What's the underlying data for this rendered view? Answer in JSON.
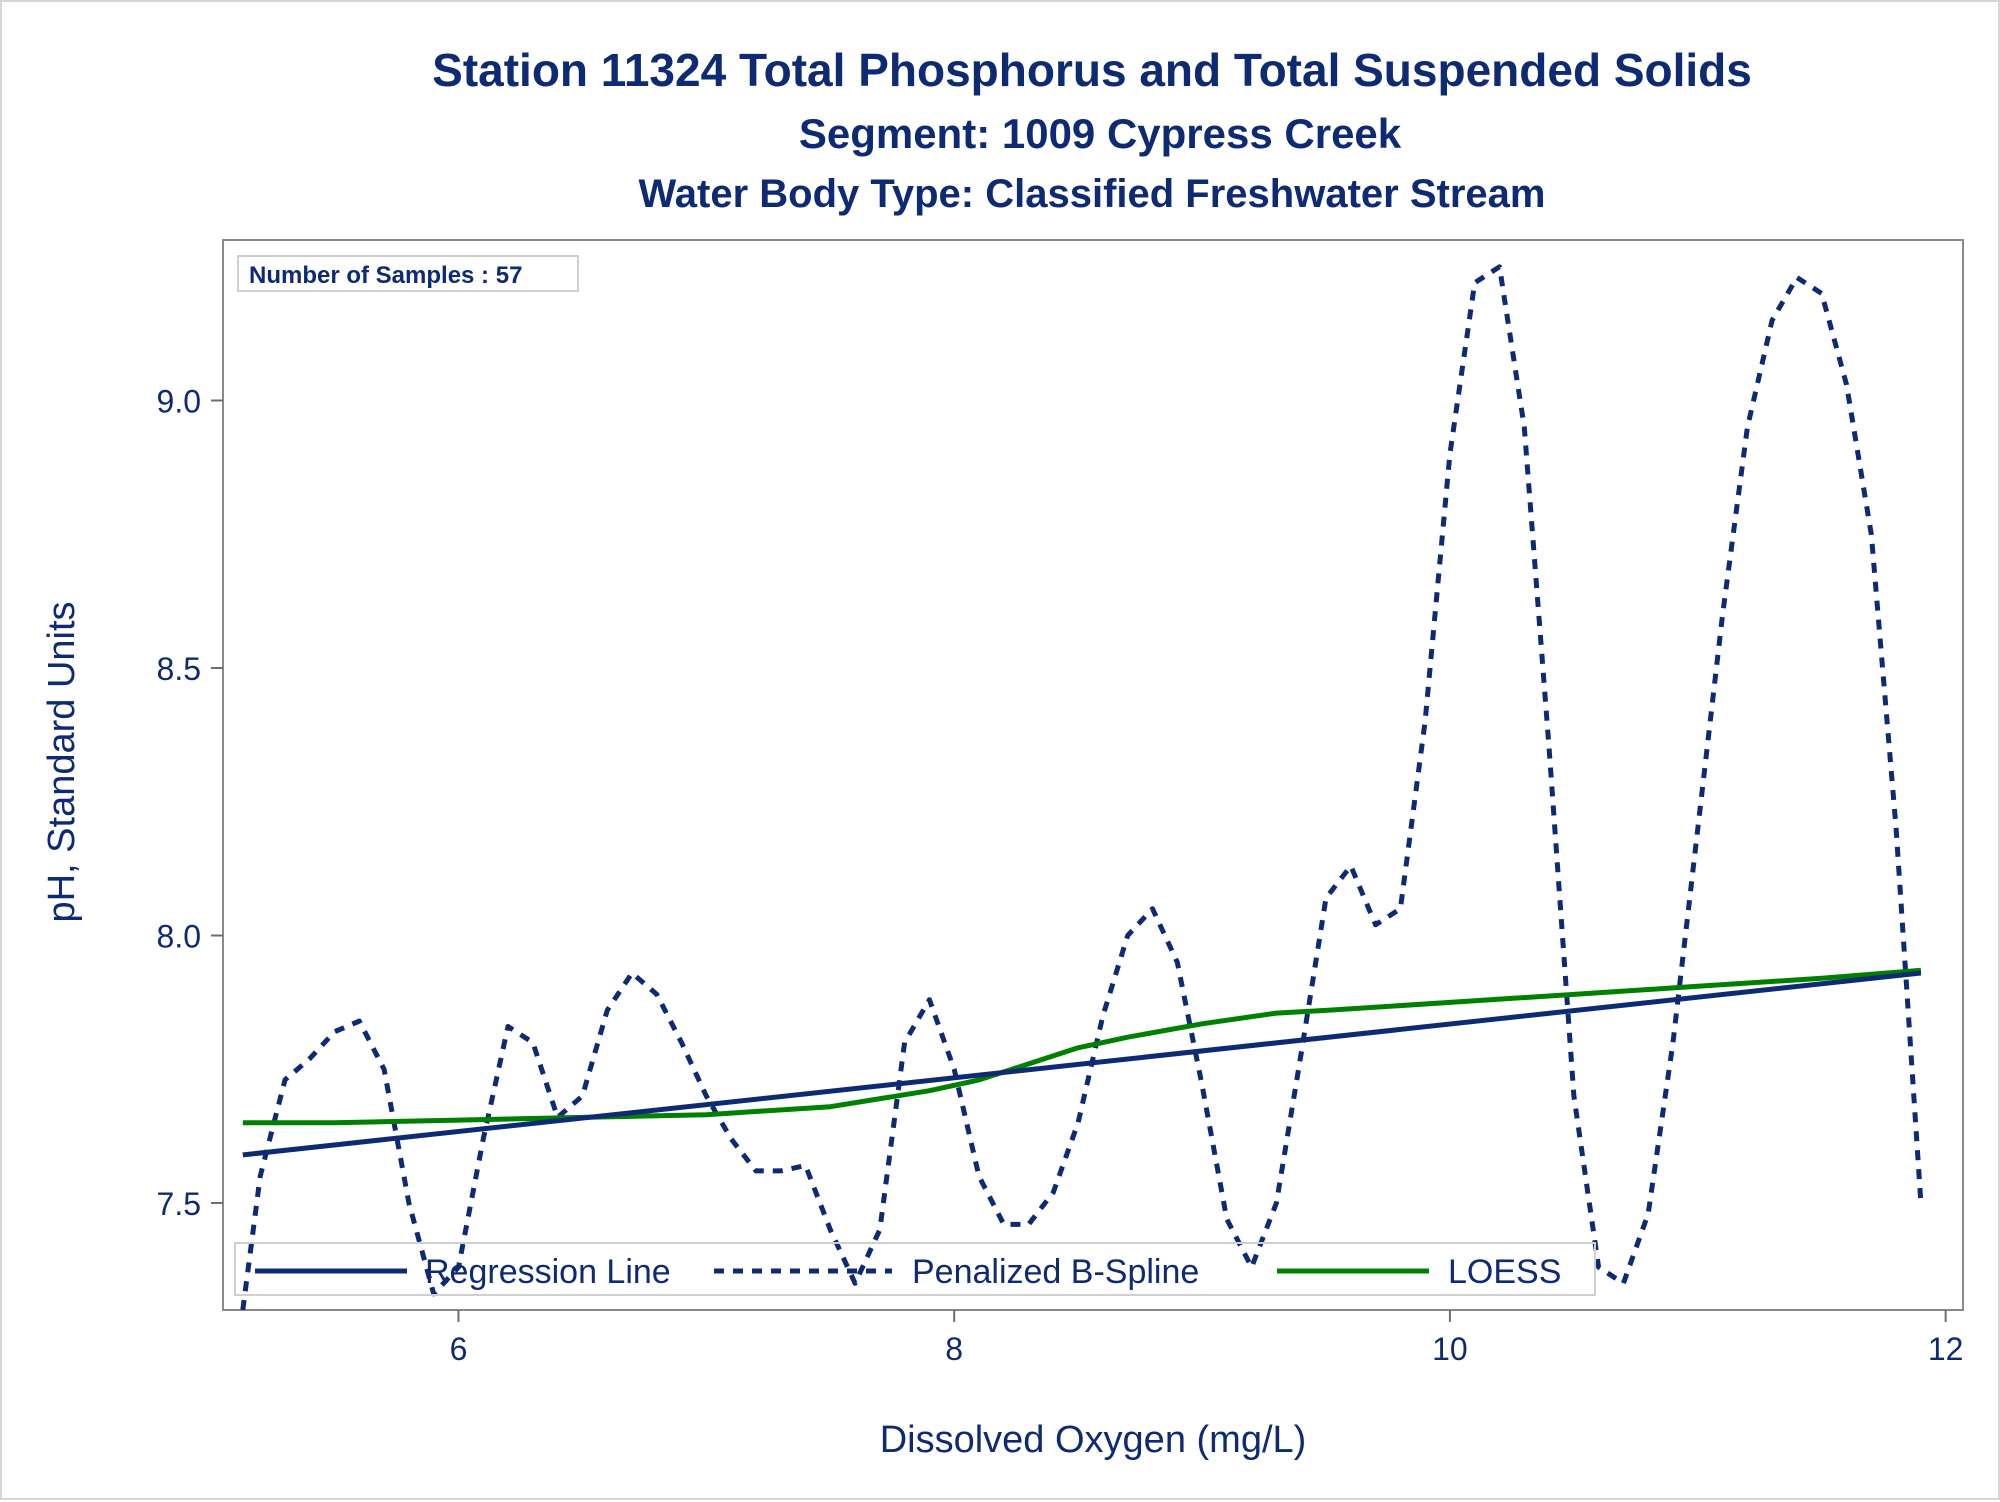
{
  "chart_data": {
    "type": "line",
    "title": "Station 11324  Total Phosphorus and Total Suspended Solids",
    "subtitle": "Segment: 1009  Cypress Creek",
    "subtitle2": "Water Body Type: Classified Freshwater Stream",
    "xlabel": "Dissolved Oxygen (mg/L)",
    "ylabel": "pH, Standard Units",
    "xlim": [
      5.05,
      12.07
    ],
    "ylim": [
      7.3,
      9.3
    ],
    "x_ticks": [
      6,
      8,
      10,
      12
    ],
    "y_ticks": [
      7.5,
      8.0,
      8.5,
      9.0
    ],
    "x_tick_labels": [
      "6",
      "8",
      "10",
      "12"
    ],
    "y_tick_labels": [
      "7.5",
      "8.0",
      "8.5",
      "9.0"
    ],
    "inset_label": "Number of Samples : 57",
    "legend_position": "bottom-left inside",
    "series": [
      {
        "name": "Regression Line",
        "style": "solid",
        "color": "#0e2a73",
        "x": [
          5.13,
          11.9
        ],
        "y": [
          7.59,
          7.93
        ]
      },
      {
        "name": "Penalized B-Spline",
        "style": "dashed",
        "color": "#0e2a73",
        "x": [
          5.13,
          5.2,
          5.3,
          5.4,
          5.5,
          5.6,
          5.7,
          5.8,
          5.9,
          6.0,
          6.1,
          6.2,
          6.3,
          6.4,
          6.5,
          6.6,
          6.7,
          6.8,
          6.9,
          7.0,
          7.1,
          7.2,
          7.3,
          7.4,
          7.5,
          7.6,
          7.7,
          7.8,
          7.9,
          8.0,
          8.1,
          8.2,
          8.3,
          8.4,
          8.5,
          8.6,
          8.7,
          8.8,
          8.9,
          9.0,
          9.1,
          9.2,
          9.3,
          9.4,
          9.5,
          9.6,
          9.7,
          9.8,
          9.9,
          10.0,
          10.1,
          10.2,
          10.3,
          10.4,
          10.5,
          10.6,
          10.7,
          10.8,
          10.9,
          11.0,
          11.1,
          11.2,
          11.3,
          11.4,
          11.5,
          11.6,
          11.7,
          11.8,
          11.9
        ],
        "y": [
          7.3,
          7.55,
          7.73,
          7.77,
          7.82,
          7.84,
          7.75,
          7.5,
          7.33,
          7.38,
          7.62,
          7.83,
          7.8,
          7.66,
          7.7,
          7.86,
          7.93,
          7.89,
          7.8,
          7.7,
          7.62,
          7.56,
          7.56,
          7.57,
          7.45,
          7.35,
          7.45,
          7.8,
          7.88,
          7.75,
          7.55,
          7.46,
          7.46,
          7.52,
          7.65,
          7.85,
          8.0,
          8.05,
          7.95,
          7.72,
          7.47,
          7.38,
          7.5,
          7.78,
          8.07,
          8.13,
          8.02,
          8.05,
          8.4,
          8.9,
          9.22,
          9.25,
          8.95,
          8.35,
          7.7,
          7.38,
          7.35,
          7.48,
          7.8,
          8.2,
          8.6,
          8.95,
          9.15,
          9.23,
          9.2,
          9.03,
          8.75,
          8.2,
          7.5
        ]
      },
      {
        "name": "LOESS",
        "style": "solid",
        "color": "#008000",
        "x": [
          5.13,
          5.5,
          6.0,
          6.5,
          7.0,
          7.5,
          7.9,
          8.1,
          8.3,
          8.5,
          8.7,
          9.0,
          9.3,
          9.5,
          10.0,
          10.5,
          11.0,
          11.5,
          11.9
        ],
        "y": [
          7.65,
          7.65,
          7.655,
          7.66,
          7.665,
          7.68,
          7.71,
          7.73,
          7.76,
          7.79,
          7.81,
          7.835,
          7.855,
          7.86,
          7.875,
          7.89,
          7.905,
          7.92,
          7.935
        ]
      }
    ]
  }
}
